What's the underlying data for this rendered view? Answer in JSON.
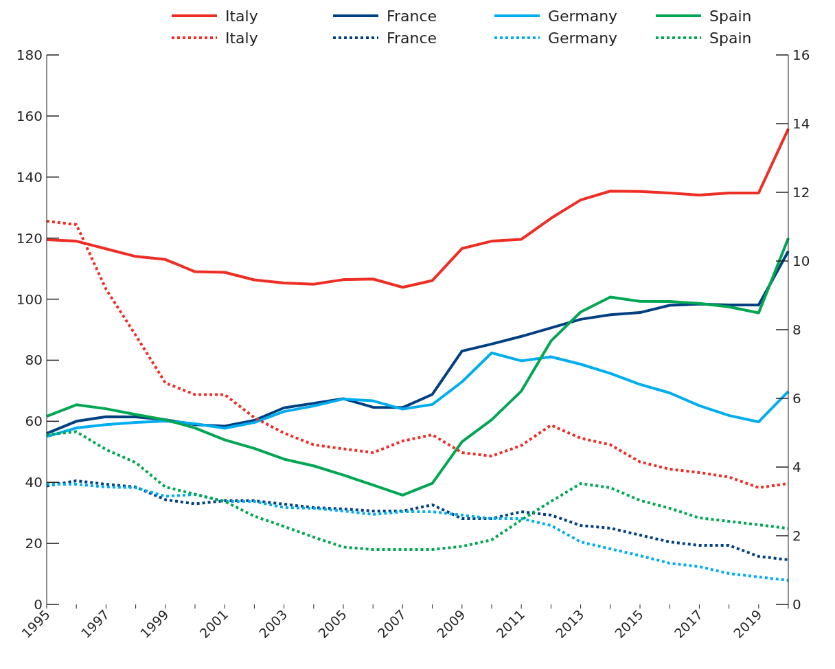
{
  "chart_data": {
    "type": "line",
    "categories": [
      "1995",
      null,
      "1997",
      null,
      "1999",
      null,
      "2001",
      null,
      "2003",
      null,
      "2005",
      null,
      "2007",
      null,
      "2009",
      null,
      "2011",
      null,
      "2013",
      null,
      "2015",
      null,
      "2017",
      null,
      "2019",
      null
    ],
    "series": [
      {
        "name": "Italy",
        "color": "#ee2d24",
        "line_style": "solid",
        "values": [
          119.5,
          119,
          116.5,
          114,
          113,
          109,
          108.8,
          106.3,
          105.3,
          104.9,
          106.4,
          106.6,
          103.9,
          106.1,
          116.6,
          119,
          119.6,
          126.5,
          132.5,
          135.4,
          135.3,
          134.8,
          134.1,
          134.8,
          134.8,
          155.8
        ]
      },
      {
        "name": "France",
        "color": "#004080",
        "line_style": "solid",
        "values": [
          56,
          60,
          61.5,
          61.4,
          60.5,
          58.9,
          58.4,
          60.3,
          64.4,
          65.9,
          67.4,
          64.6,
          64.5,
          68.8,
          83,
          85.3,
          87.8,
          90.6,
          93.4,
          94.9,
          95.6,
          98,
          98.4,
          98.1,
          98.1,
          115.7
        ]
      },
      {
        "name": "Germany",
        "color": "#00adef",
        "line_style": "solid",
        "values": [
          55,
          57.8,
          58.9,
          59.6,
          60.1,
          59.2,
          57.7,
          59.6,
          63.2,
          65,
          67.3,
          66.7,
          64,
          65.5,
          72.9,
          82.4,
          79.8,
          81.1,
          78.7,
          75.7,
          72.1,
          69.3,
          65.1,
          61.9,
          59.8,
          69.8
        ]
      },
      {
        "name": "Spain",
        "color": "#00a651",
        "line_style": "solid",
        "values": [
          61.6,
          65.4,
          64.1,
          62.2,
          60.5,
          57.8,
          53.9,
          51.1,
          47.6,
          45.4,
          42.4,
          39.1,
          35.8,
          39.7,
          53.3,
          60.5,
          69.9,
          86.3,
          95.8,
          100.7,
          99.3,
          99.2,
          98.6,
          97.5,
          95.5,
          120
        ]
      },
      {
        "name": "Italy",
        "color": "#ee2d24",
        "line_style": "dotted",
        "axis": "y2",
        "values": [
          11.16,
          11.06,
          9.18,
          7.84,
          6.45,
          6.11,
          6.11,
          5.44,
          4.99,
          4.65,
          4.53,
          4.42,
          4.76,
          4.94,
          4.42,
          4.32,
          4.63,
          5.22,
          4.84,
          4.65,
          4.15,
          3.94,
          3.84,
          3.71,
          3.4,
          3.52
        ]
      },
      {
        "name": "France",
        "color": "#004080",
        "line_style": "dotted",
        "axis": "y2",
        "values": [
          3.45,
          3.6,
          3.5,
          3.42,
          3.05,
          2.93,
          3.02,
          3.02,
          2.92,
          2.82,
          2.78,
          2.72,
          2.72,
          2.9,
          2.5,
          2.5,
          2.7,
          2.6,
          2.3,
          2.22,
          2.02,
          1.82,
          1.72,
          1.72,
          1.4,
          1.3
        ]
      },
      {
        "name": "Germany",
        "color": "#00adef",
        "line_style": "dotted",
        "axis": "y2",
        "values": [
          3.5,
          3.5,
          3.42,
          3.4,
          3.15,
          3.2,
          3,
          3,
          2.82,
          2.8,
          2.72,
          2.62,
          2.7,
          2.7,
          2.6,
          2.5,
          2.5,
          2.3,
          1.82,
          1.62,
          1.42,
          1.2,
          1.1,
          0.9,
          0.8,
          0.7
        ]
      },
      {
        "name": "Spain",
        "color": "#00a651",
        "line_style": "dotted",
        "axis": "y2",
        "values": [
          4.94,
          5.03,
          4.51,
          4.13,
          3.42,
          3.21,
          3,
          2.57,
          2.27,
          1.96,
          1.67,
          1.6,
          1.6,
          1.6,
          1.69,
          1.88,
          2.46,
          3,
          3.52,
          3.4,
          3.03,
          2.8,
          2.52,
          2.42,
          2.32,
          2.21
        ]
      }
    ],
    "ylim": [
      0,
      180
    ],
    "yticks": [
      0,
      20,
      40,
      60,
      80,
      100,
      120,
      140,
      160,
      180
    ],
    "y2lim": [
      0,
      16
    ],
    "y2ticks": [
      0,
      2,
      4,
      6,
      8,
      10,
      12,
      14,
      16
    ],
    "grid": false,
    "legend": "top",
    "marker": "none"
  }
}
